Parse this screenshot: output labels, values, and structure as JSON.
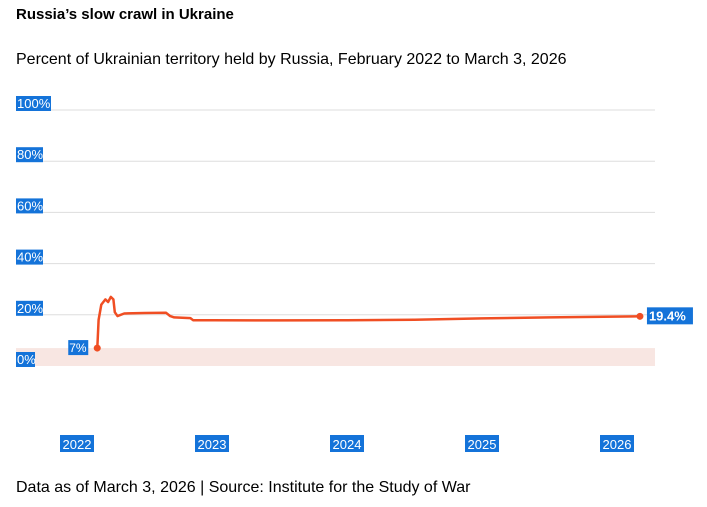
{
  "title": "Russia’s slow crawl in Ukraine",
  "subtitle": "Percent of Ukrainian territory held by Russia, February 2022 to March 3, 2026",
  "footer": "Data as of March 3, 2026 | Source: Institute for the Study of War",
  "colors": {
    "line": "#f04e23",
    "label_bg": "#1473d9",
    "band": "#f8e6e2",
    "grid": "#dddddd"
  },
  "chart_data": {
    "type": "line",
    "title": "Russia’s slow crawl in Ukraine",
    "xlabel": "",
    "ylabel": "",
    "ylim": [
      0,
      100
    ],
    "yticks": [
      0,
      20,
      40,
      60,
      80,
      100
    ],
    "ytick_labels": [
      "0%",
      "20%",
      "40%",
      "60%",
      "80%",
      "100%"
    ],
    "xticks": [
      2022,
      2023,
      2024,
      2025,
      2026
    ],
    "xtick_labels": [
      "2022",
      "2023",
      "2024",
      "2025",
      "2026"
    ],
    "xlim": [
      2022,
      2026.35
    ],
    "grid": true,
    "shaded_band": [
      0,
      7
    ],
    "series": [
      {
        "values": [
          {
            "x": 2022.15,
            "y": 7
          },
          {
            "x": 2022.16,
            "y": 18
          },
          {
            "x": 2022.18,
            "y": 24
          },
          {
            "x": 2022.21,
            "y": 26
          },
          {
            "x": 2022.23,
            "y": 25
          },
          {
            "x": 2022.25,
            "y": 27
          },
          {
            "x": 2022.27,
            "y": 26
          },
          {
            "x": 2022.28,
            "y": 21
          },
          {
            "x": 2022.3,
            "y": 19.5
          },
          {
            "x": 2022.35,
            "y": 20.5
          },
          {
            "x": 2022.5,
            "y": 20.7
          },
          {
            "x": 2022.66,
            "y": 20.8
          },
          {
            "x": 2022.69,
            "y": 19.5
          },
          {
            "x": 2022.72,
            "y": 19.0
          },
          {
            "x": 2022.84,
            "y": 18.7
          },
          {
            "x": 2022.86,
            "y": 17.9
          },
          {
            "x": 2023.0,
            "y": 17.9
          },
          {
            "x": 2023.5,
            "y": 17.8
          },
          {
            "x": 2024.0,
            "y": 17.9
          },
          {
            "x": 2024.5,
            "y": 18.1
          },
          {
            "x": 2025.0,
            "y": 18.6
          },
          {
            "x": 2025.5,
            "y": 19.0
          },
          {
            "x": 2025.9,
            "y": 19.2
          },
          {
            "x": 2026.17,
            "y": 19.4
          }
        ]
      }
    ],
    "annotations": [
      {
        "x": 2022.15,
        "y": 7,
        "text": "7%"
      },
      {
        "x": 2026.17,
        "y": 19.4,
        "text": "19.4%"
      }
    ]
  }
}
